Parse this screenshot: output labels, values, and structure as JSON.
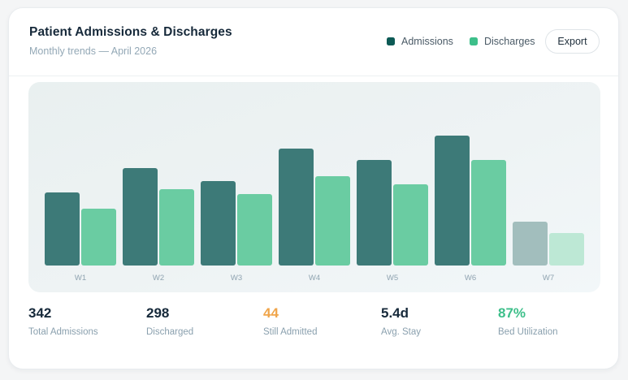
{
  "header": {
    "title": "Patient Admissions & Discharges",
    "subtitle": "Monthly trends — April 2026",
    "export_label": "Export"
  },
  "legend": [
    {
      "label": "Admissions",
      "color": "#0d5a55"
    },
    {
      "label": "Discharges",
      "color": "#3dbf8a"
    }
  ],
  "colors": {
    "admissions_bar": "#3d7a78",
    "discharges_bar": "#6acca2",
    "admissions_bar_muted": "#a2bebd",
    "discharges_bar_muted": "#bde8d5",
    "still_admitted": "#f0a54a",
    "bed_utilization": "#3dbf8a"
  },
  "chart_data": {
    "type": "bar",
    "categories": [
      "W1",
      "W2",
      "W3",
      "W4",
      "W5",
      "W6",
      "W7"
    ],
    "series": [
      {
        "name": "Admissions",
        "values": [
          45,
          60,
          52,
          72,
          65,
          80,
          27
        ]
      },
      {
        "name": "Discharges",
        "values": [
          35,
          47,
          44,
          55,
          50,
          65,
          20
        ]
      }
    ],
    "ylim": [
      0,
      100
    ],
    "muted_categories": [
      "W7"
    ],
    "grid": false,
    "legend_position": "top-right"
  },
  "stats": [
    {
      "value": "342",
      "label": "Total Admissions",
      "color": "#16293a"
    },
    {
      "value": "298",
      "label": "Discharged",
      "color": "#16293a"
    },
    {
      "value": "44",
      "label": "Still Admitted",
      "color": "#f0a54a"
    },
    {
      "value": "5.4d",
      "label": "Avg. Stay",
      "color": "#16293a"
    },
    {
      "value": "87%",
      "label": "Bed Utilization",
      "color": "#3dbf8a"
    }
  ]
}
